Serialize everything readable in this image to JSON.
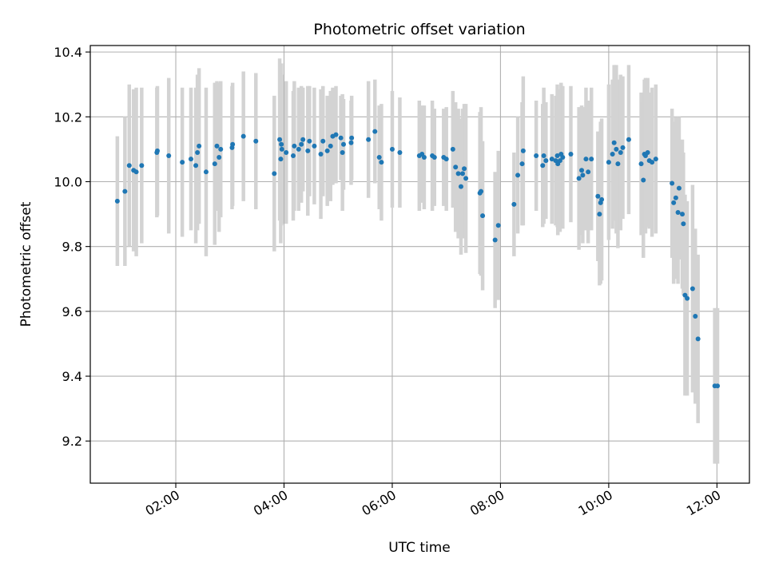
{
  "chart_data": {
    "type": "scatter",
    "title": "Photometric offset variation",
    "xlabel": "UTC time",
    "ylabel": "Photometric offset",
    "grid": true,
    "x_unit": "hours",
    "xlim": [
      0.42,
      12.6
    ],
    "ylim": [
      9.07,
      10.42
    ],
    "x_ticks": [
      {
        "value": 2,
        "label": "02:00"
      },
      {
        "value": 4,
        "label": "04:00"
      },
      {
        "value": 6,
        "label": "06:00"
      },
      {
        "value": 8,
        "label": "08:00"
      },
      {
        "value": 10,
        "label": "10:00"
      },
      {
        "value": 12,
        "label": "12:00"
      }
    ],
    "y_ticks": [
      {
        "value": 9.2,
        "label": "9.2"
      },
      {
        "value": 9.4,
        "label": "9.4"
      },
      {
        "value": 9.6,
        "label": "9.6"
      },
      {
        "value": 9.8,
        "label": "9.8"
      },
      {
        "value": 10.0,
        "label": "10.0"
      },
      {
        "value": 10.2,
        "label": "10.2"
      },
      {
        "value": 10.4,
        "label": "10.4"
      }
    ],
    "colors": {
      "point": "#1f77b4",
      "errorbar": "#d3d3d3",
      "grid": "#b0b0b0"
    },
    "series": [
      {
        "name": "offset",
        "points": [
          [
            0.92,
            9.94,
            0.2
          ],
          [
            1.06,
            9.97,
            0.23
          ],
          [
            1.14,
            10.05,
            0.25
          ],
          [
            1.22,
            10.035,
            0.25
          ],
          [
            1.27,
            10.03,
            0.26
          ],
          [
            1.37,
            10.05,
            0.24
          ],
          [
            1.65,
            10.09,
            0.2
          ],
          [
            1.66,
            10.095,
            0.2
          ],
          [
            1.87,
            10.08,
            0.24
          ],
          [
            2.12,
            10.06,
            0.23
          ],
          [
            2.28,
            10.07,
            0.22
          ],
          [
            2.37,
            10.05,
            0.24
          ],
          [
            2.4,
            10.09,
            0.24
          ],
          [
            2.43,
            10.11,
            0.24
          ],
          [
            2.56,
            10.03,
            0.26
          ],
          [
            2.72,
            10.055,
            0.25
          ],
          [
            2.76,
            10.11,
            0.2
          ],
          [
            2.8,
            10.075,
            0.23
          ],
          [
            2.83,
            10.1,
            0.21
          ],
          [
            3.04,
            10.105,
            0.19
          ],
          [
            3.05,
            10.115,
            0.19
          ],
          [
            3.25,
            10.14,
            0.2
          ],
          [
            3.48,
            10.125,
            0.21
          ],
          [
            3.82,
            10.025,
            0.24
          ],
          [
            3.92,
            10.13,
            0.25
          ],
          [
            3.94,
            10.07,
            0.26
          ],
          [
            3.95,
            10.115,
            0.25
          ],
          [
            3.96,
            10.1,
            0.23
          ],
          [
            4.04,
            10.09,
            0.22
          ],
          [
            4.17,
            10.08,
            0.2
          ],
          [
            4.19,
            10.11,
            0.2
          ],
          [
            4.27,
            10.1,
            0.19
          ],
          [
            4.32,
            10.115,
            0.18
          ],
          [
            4.35,
            10.13,
            0.16
          ],
          [
            4.44,
            10.095,
            0.2
          ],
          [
            4.47,
            10.125,
            0.17
          ],
          [
            4.56,
            10.11,
            0.18
          ],
          [
            4.68,
            10.085,
            0.2
          ],
          [
            4.72,
            10.125,
            0.17
          ],
          [
            4.8,
            10.095,
            0.17
          ],
          [
            4.86,
            10.11,
            0.17
          ],
          [
            4.9,
            10.14,
            0.15
          ],
          [
            4.96,
            10.145,
            0.15
          ],
          [
            5.05,
            10.135,
            0.13
          ],
          [
            5.08,
            10.09,
            0.18
          ],
          [
            5.1,
            10.115,
            0.14
          ],
          [
            5.24,
            10.12,
            0.13
          ],
          [
            5.25,
            10.135,
            0.13
          ],
          [
            5.56,
            10.13,
            0.18
          ],
          [
            5.68,
            10.155,
            0.16
          ],
          [
            5.76,
            10.075,
            0.16
          ],
          [
            5.8,
            10.06,
            0.18
          ],
          [
            6.0,
            10.1,
            0.18
          ],
          [
            6.14,
            10.09,
            0.17
          ],
          [
            6.5,
            10.08,
            0.17
          ],
          [
            6.55,
            10.085,
            0.15
          ],
          [
            6.59,
            10.075,
            0.16
          ],
          [
            6.74,
            10.08,
            0.17
          ],
          [
            6.78,
            10.075,
            0.15
          ],
          [
            6.95,
            10.075,
            0.15
          ],
          [
            7.0,
            10.07,
            0.16
          ],
          [
            7.12,
            10.1,
            0.18
          ],
          [
            7.17,
            10.045,
            0.2
          ],
          [
            7.22,
            10.025,
            0.2
          ],
          [
            7.27,
            9.985,
            0.21
          ],
          [
            7.3,
            10.025,
            0.2
          ],
          [
            7.33,
            10.04,
            0.2
          ],
          [
            7.36,
            10.01,
            0.23
          ],
          [
            7.62,
            9.965,
            0.25
          ],
          [
            7.64,
            9.97,
            0.26
          ],
          [
            7.67,
            9.895,
            0.23
          ],
          [
            7.9,
            9.82,
            0.21
          ],
          [
            7.96,
            9.865,
            0.23
          ],
          [
            8.25,
            9.93,
            0.16
          ],
          [
            8.32,
            10.02,
            0.18
          ],
          [
            8.4,
            10.055,
            0.19
          ],
          [
            8.42,
            10.095,
            0.23
          ],
          [
            8.66,
            10.08,
            0.17
          ],
          [
            8.78,
            10.05,
            0.19
          ],
          [
            8.8,
            10.08,
            0.21
          ],
          [
            8.84,
            10.065,
            0.18
          ],
          [
            8.95,
            10.07,
            0.2
          ],
          [
            9.02,
            10.065,
            0.2
          ],
          [
            9.05,
            10.08,
            0.22
          ],
          [
            9.06,
            10.055,
            0.22
          ],
          [
            9.1,
            10.065,
            0.22
          ],
          [
            9.12,
            10.085,
            0.22
          ],
          [
            9.15,
            10.075,
            0.22
          ],
          [
            9.3,
            10.085,
            0.21
          ],
          [
            9.45,
            10.01,
            0.22
          ],
          [
            9.5,
            10.035,
            0.2
          ],
          [
            9.52,
            10.02,
            0.21
          ],
          [
            9.58,
            10.07,
            0.22
          ],
          [
            9.62,
            10.03,
            0.22
          ],
          [
            9.68,
            10.07,
            0.22
          ],
          [
            9.8,
            9.955,
            0.2
          ],
          [
            9.83,
            9.9,
            0.22
          ],
          [
            9.85,
            9.935,
            0.25
          ],
          [
            9.87,
            9.945,
            0.25
          ],
          [
            10.0,
            10.06,
            0.24
          ],
          [
            10.07,
            10.085,
            0.23
          ],
          [
            10.1,
            10.12,
            0.24
          ],
          [
            10.14,
            10.1,
            0.26
          ],
          [
            10.17,
            10.055,
            0.26
          ],
          [
            10.22,
            10.09,
            0.24
          ],
          [
            10.26,
            10.105,
            0.22
          ],
          [
            10.37,
            10.13,
            0.23
          ],
          [
            10.6,
            10.055,
            0.22
          ],
          [
            10.64,
            10.005,
            0.24
          ],
          [
            10.66,
            10.085,
            0.23
          ],
          [
            10.68,
            10.08,
            0.24
          ],
          [
            10.72,
            10.09,
            0.23
          ],
          [
            10.75,
            10.065,
            0.21
          ],
          [
            10.8,
            10.06,
            0.23
          ],
          [
            10.87,
            10.07,
            0.23
          ],
          [
            11.17,
            9.995,
            0.23
          ],
          [
            11.2,
            9.935,
            0.25
          ],
          [
            11.24,
            9.95,
            0.25
          ],
          [
            11.28,
            9.905,
            0.22
          ],
          [
            11.3,
            9.98,
            0.22
          ],
          [
            11.36,
            9.9,
            0.23
          ],
          [
            11.38,
            9.87,
            0.22
          ],
          [
            11.41,
            9.65,
            0.31
          ],
          [
            11.45,
            9.64,
            0.3
          ],
          [
            11.55,
            9.67,
            0.32
          ],
          [
            11.6,
            9.585,
            0.27
          ],
          [
            11.65,
            9.515,
            0.26
          ],
          [
            11.96,
            9.37,
            0.24
          ],
          [
            12.01,
            9.37,
            0.24
          ]
        ]
      }
    ]
  }
}
